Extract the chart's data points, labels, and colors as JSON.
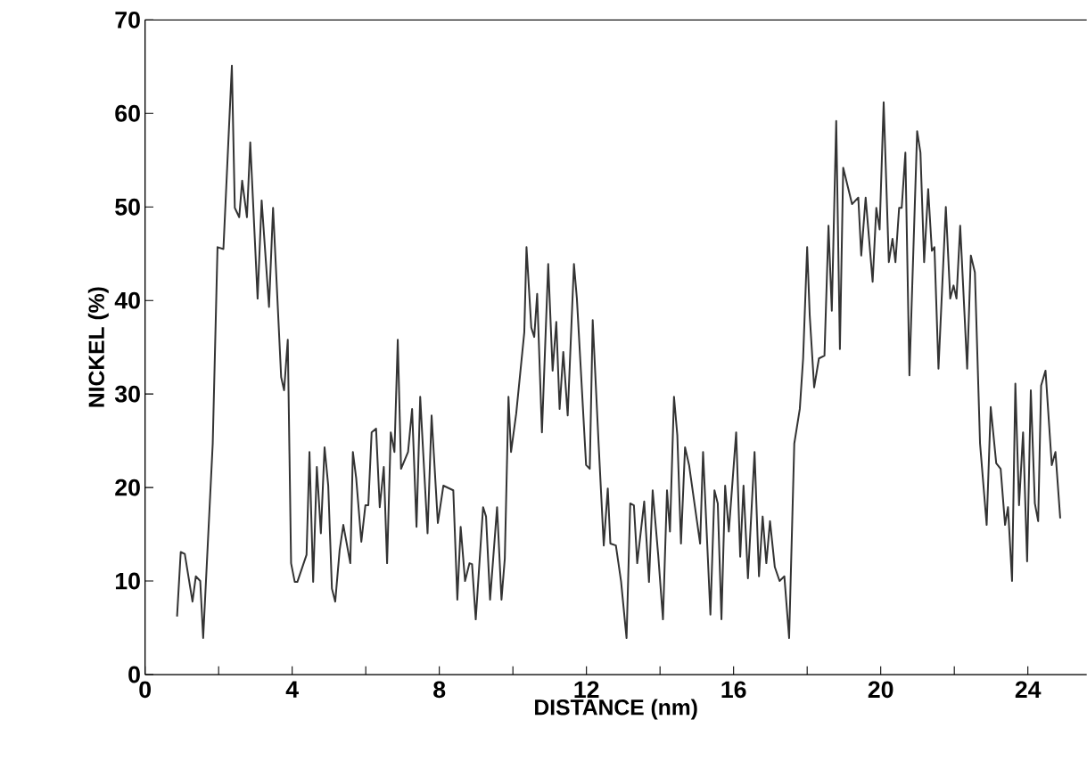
{
  "chart_data": {
    "type": "line",
    "xlabel": "DISTANCE (nm)",
    "ylabel": "NICKEL (%)",
    "xlim": [
      0,
      25.6
    ],
    "ylim": [
      0,
      70
    ],
    "xticks": [
      0,
      {
        "value": 2,
        "label": null
      },
      4,
      {
        "value": 6,
        "label": null
      },
      8,
      {
        "value": 10,
        "label": null
      },
      12,
      {
        "value": 14,
        "label": null
      },
      16,
      {
        "value": 18,
        "label": null
      },
      20,
      {
        "value": 22,
        "label": null
      },
      24
    ],
    "yticks": [
      0,
      10,
      20,
      30,
      40,
      50,
      60,
      70
    ],
    "series": [
      {
        "color": "#333333",
        "x": [
          0.87,
          0.97,
          1.08,
          1.29,
          1.38,
          1.5,
          1.58,
          1.84,
          1.97,
          2.13,
          2.36,
          2.44,
          2.56,
          2.64,
          2.77,
          2.86,
          3.06,
          3.17,
          3.37,
          3.48,
          3.7,
          3.78,
          3.88,
          3.97,
          4.07,
          4.14,
          4.39,
          4.47,
          4.57,
          4.67,
          4.78,
          4.88,
          4.98,
          5.08,
          5.17,
          5.29,
          5.39,
          5.58,
          5.65,
          5.74,
          5.88,
          5.99,
          6.07,
          6.16,
          6.28,
          6.38,
          6.49,
          6.58,
          6.68,
          6.78,
          6.87,
          6.96,
          7.15,
          7.26,
          7.38,
          7.48,
          7.68,
          7.79,
          7.96,
          8.11,
          8.38,
          8.49,
          8.58,
          8.7,
          8.82,
          8.89,
          8.99,
          9.19,
          9.27,
          9.38,
          9.57,
          9.69,
          9.78,
          9.88,
          9.95,
          10.09,
          10.31,
          10.37,
          10.5,
          10.58,
          10.66,
          10.79,
          10.96,
          11.08,
          11.18,
          11.27,
          11.37,
          11.49,
          11.66,
          11.74,
          11.99,
          12.09,
          12.17,
          12.33,
          12.47,
          12.58,
          12.65,
          12.8,
          12.94,
          13.09,
          13.19,
          13.29,
          13.38,
          13.57,
          13.7,
          13.8,
          13.95,
          14.08,
          14.19,
          14.27,
          14.38,
          14.47,
          14.57,
          14.68,
          14.79,
          15.09,
          15.17,
          15.37,
          15.48,
          15.57,
          15.67,
          15.77,
          15.87,
          16.07,
          16.18,
          16.27,
          16.39,
          16.57,
          16.69,
          16.79,
          16.89,
          16.99,
          17.12,
          17.25,
          17.38,
          17.51,
          17.65,
          17.8,
          17.89,
          18.0,
          18.07,
          18.19,
          18.32,
          18.47,
          18.58,
          18.67,
          18.79,
          18.89,
          18.98,
          19.22,
          19.39,
          19.47,
          19.59,
          19.78,
          19.88,
          19.97,
          20.08,
          20.22,
          20.32,
          20.4,
          20.5,
          20.57,
          20.67,
          20.78,
          20.99,
          21.08,
          21.18,
          21.29,
          21.39,
          21.46,
          21.57,
          21.77,
          21.89,
          21.98,
          22.06,
          22.16,
          22.35,
          22.45,
          22.56,
          22.7,
          22.88,
          22.99,
          23.14,
          23.26,
          23.38,
          23.46,
          23.57,
          23.66,
          23.76,
          23.87,
          23.98,
          24.08,
          24.19,
          24.28,
          24.36,
          24.48,
          24.65,
          24.75,
          24.88
        ],
        "values": [
          6.2,
          13.1,
          12.9,
          7.8,
          10.5,
          10.0,
          3.9,
          24.7,
          45.7,
          45.5,
          65.1,
          49.9,
          48.9,
          52.8,
          48.9,
          56.9,
          40.2,
          50.7,
          39.3,
          49.9,
          31.8,
          30.4,
          35.8,
          11.9,
          9.9,
          9.9,
          12.8,
          23.8,
          9.9,
          22.2,
          15.1,
          24.3,
          20.2,
          9.2,
          7.8,
          13.3,
          16.0,
          11.9,
          23.8,
          21.0,
          14.2,
          18.1,
          18.1,
          25.9,
          26.3,
          17.9,
          22.2,
          11.9,
          25.9,
          23.8,
          35.8,
          22.0,
          23.8,
          28.4,
          15.8,
          29.7,
          15.1,
          27.7,
          16.2,
          20.2,
          19.7,
          8.0,
          15.8,
          10.0,
          11.9,
          11.8,
          5.9,
          17.9,
          16.9,
          8.0,
          17.9,
          8.0,
          12.4,
          29.7,
          23.8,
          27.9,
          36.6,
          45.7,
          37.1,
          36.1,
          40.7,
          25.9,
          43.9,
          32.5,
          37.7,
          28.4,
          34.5,
          27.7,
          43.9,
          40.2,
          22.4,
          22.0,
          37.9,
          24.7,
          13.8,
          19.9,
          14.0,
          13.8,
          10.0,
          3.9,
          18.3,
          18.1,
          11.9,
          18.5,
          9.9,
          19.7,
          12.8,
          5.9,
          19.7,
          15.3,
          29.7,
          25.6,
          14.0,
          24.3,
          22.4,
          14.0,
          23.8,
          6.4,
          19.7,
          18.3,
          5.9,
          20.2,
          15.3,
          25.9,
          12.6,
          20.2,
          10.3,
          23.8,
          10.5,
          16.9,
          11.9,
          16.4,
          11.5,
          10.0,
          10.5,
          3.9,
          24.7,
          28.4,
          33.8,
          45.7,
          38.4,
          30.7,
          33.8,
          34.1,
          48.0,
          38.9,
          59.2,
          34.8,
          54.2,
          50.3,
          51.0,
          44.8,
          51.0,
          42.0,
          49.9,
          47.6,
          61.2,
          44.1,
          46.6,
          44.1,
          49.9,
          49.9,
          55.8,
          32.0,
          58.1,
          55.8,
          44.1,
          51.9,
          45.3,
          45.7,
          32.7,
          50.0,
          40.2,
          41.6,
          40.2,
          48.0,
          32.7,
          44.8,
          43.0,
          24.7,
          16.0,
          28.6,
          22.6,
          22.0,
          16.0,
          17.9,
          10.0,
          31.1,
          18.1,
          25.9,
          12.1,
          30.4,
          18.3,
          16.4,
          30.9,
          32.5,
          22.4,
          23.8,
          16.7
        ]
      }
    ]
  }
}
